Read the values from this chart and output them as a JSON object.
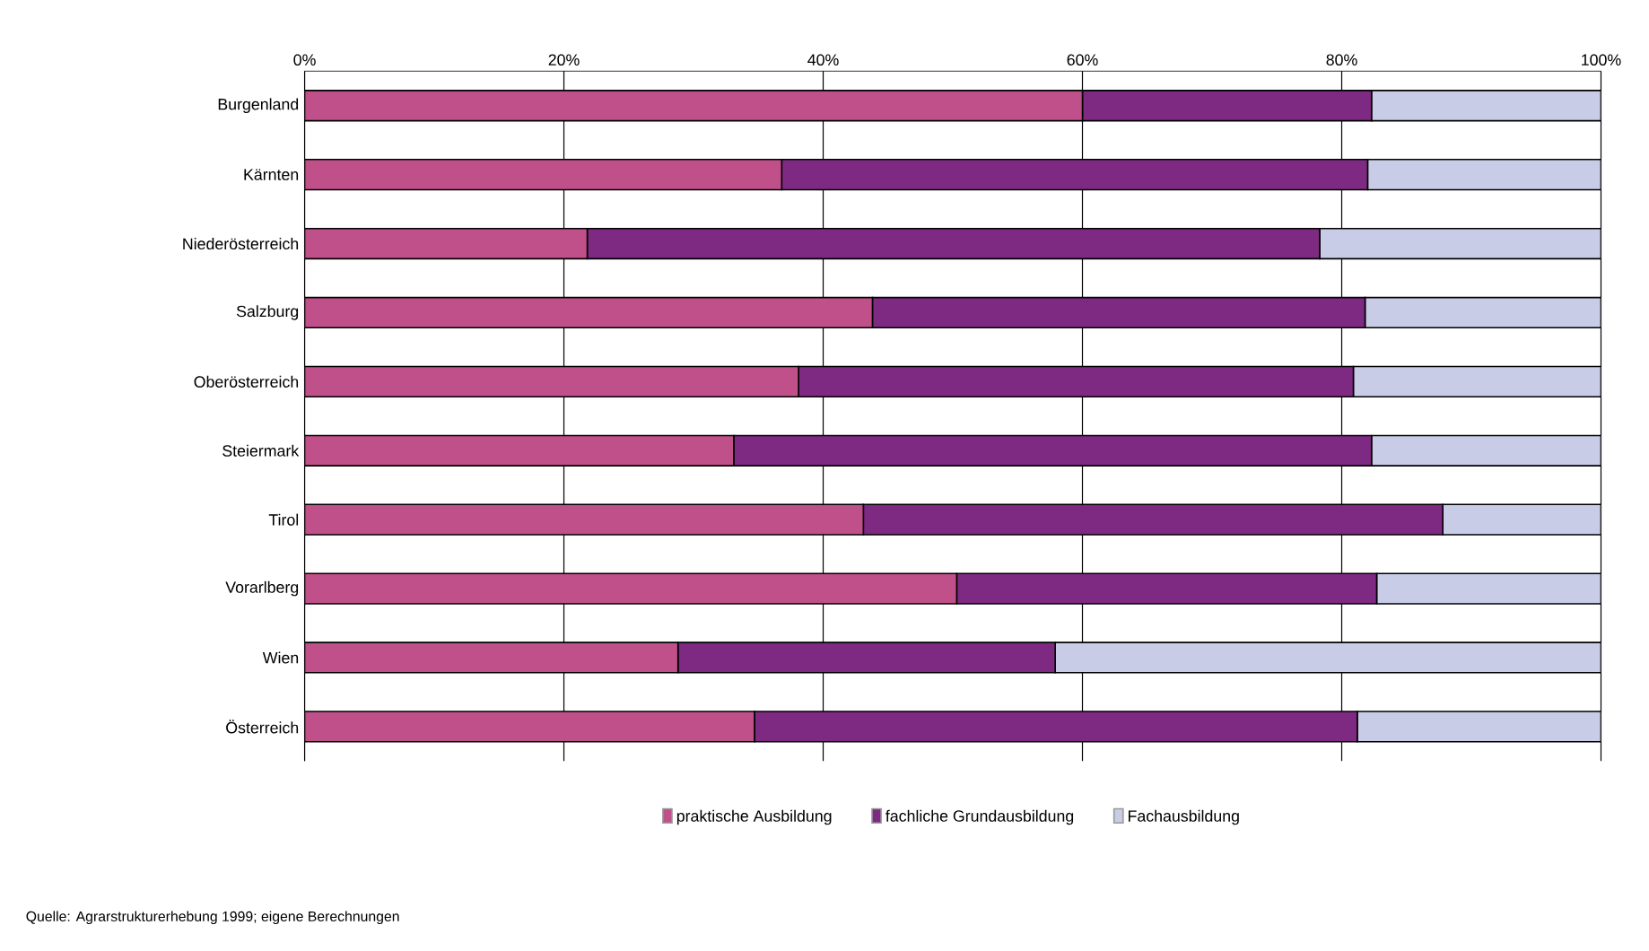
{
  "chart_data": {
    "type": "bar",
    "orientation": "horizontal",
    "stacked": true,
    "categories": [
      "Burgenland",
      "Kärnten",
      "Niederösterreich",
      "Salzburg",
      "Oberösterreich",
      "Steiermark",
      "Tirol",
      "Vorarlberg",
      "Wien",
      "Österreich"
    ],
    "series": [
      {
        "name": "praktische Ausbildung",
        "color": "#c0508a",
        "values": [
          60.0,
          36.8,
          21.8,
          43.8,
          38.1,
          33.1,
          43.1,
          50.3,
          28.8,
          34.7
        ]
      },
      {
        "name": "fachliche Grundausbildung",
        "color": "#7e2a82",
        "values": [
          22.3,
          45.2,
          56.5,
          38.0,
          42.8,
          49.2,
          44.7,
          32.4,
          29.1,
          46.5
        ]
      },
      {
        "name": "Fachausbildung",
        "color": "#c8cce6",
        "values": [
          17.7,
          18.0,
          21.7,
          18.2,
          19.1,
          17.7,
          12.2,
          17.3,
          42.1,
          18.8
        ]
      }
    ],
    "xlim": [
      0,
      100
    ],
    "xticks": [
      {
        "value": 0,
        "label": "0%"
      },
      {
        "value": 20,
        "label": "20%"
      },
      {
        "value": 40,
        "label": "40%"
      },
      {
        "value": 60,
        "label": "60%"
      },
      {
        "value": 80,
        "label": "80%"
      },
      {
        "value": 100,
        "label": "100%"
      }
    ],
    "grid": "x",
    "legend": "bottom",
    "annotations": [
      "Quelle: Agrarstrukturerhebung 1999; eigene Berechnungen"
    ]
  }
}
